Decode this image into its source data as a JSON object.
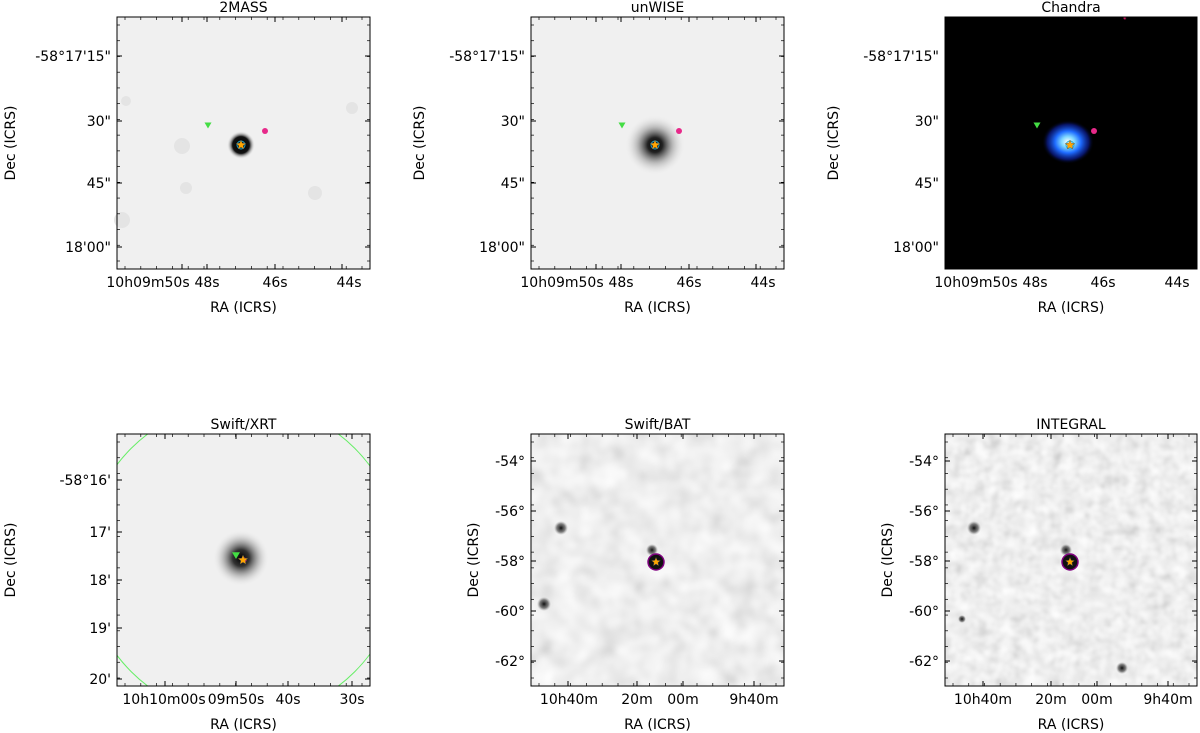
{
  "chart_data": [
    {
      "type": "image",
      "title": "2MASS",
      "xlabel": "RA (ICRS)",
      "ylabel": "Dec (ICRS)",
      "x_ticks": [
        "10h09m50s",
        "48s",
        "46s",
        "44s"
      ],
      "y_ticks": [
        "-58°17'15\"",
        "30\"",
        "45\"",
        "18'00\""
      ],
      "colormap": "gray_r",
      "source_spread": "compact"
    },
    {
      "type": "image",
      "title": "unWISE",
      "xlabel": "RA (ICRS)",
      "ylabel": "Dec (ICRS)",
      "x_ticks": [
        "10h09m50s",
        "48s",
        "46s",
        "44s"
      ],
      "y_ticks": [
        "-58°17'15\"",
        "30\"",
        "45\"",
        "18'00\""
      ],
      "colormap": "gray_r",
      "source_spread": "extended"
    },
    {
      "type": "image",
      "title": "Chandra",
      "xlabel": "RA (ICRS)",
      "ylabel": "Dec (ICRS)",
      "x_ticks": [
        "10h09m50s",
        "48s",
        "46s",
        "44s"
      ],
      "y_ticks": [
        "-58°17'15\"",
        "30\"",
        "45\"",
        "18'00\""
      ],
      "colormap": "blue-black",
      "background": "#000000"
    },
    {
      "type": "image",
      "title": "Swift/XRT",
      "xlabel": "RA (ICRS)",
      "ylabel": "Dec (ICRS)",
      "x_ticks": [
        "10h10m00s",
        "09m50s",
        "40s",
        "30s"
      ],
      "y_ticks": [
        "-58°16'",
        "17'",
        "18'",
        "19'",
        "20'"
      ],
      "colormap": "gray_r",
      "field_of_view_circle": true
    },
    {
      "type": "image",
      "title": "Swift/BAT",
      "xlabel": "RA (ICRS)",
      "ylabel": "Dec (ICRS)",
      "x_ticks": [
        "10h40m",
        "20m",
        "00m",
        "9h40m"
      ],
      "y_ticks": [
        "-54°",
        "-56°",
        "-58°",
        "-60°",
        "-62°"
      ],
      "colormap": "gray_r",
      "texture": "noisy"
    },
    {
      "type": "image",
      "title": "INTEGRAL",
      "xlabel": "RA (ICRS)",
      "ylabel": "Dec (ICRS)",
      "x_ticks": [
        "10h40m",
        "20m",
        "00m",
        "9h40m"
      ],
      "y_ticks": [
        "-54°",
        "-56°",
        "-58°",
        "-60°",
        "-62°"
      ],
      "colormap": "gray_r",
      "texture": "noisy"
    }
  ],
  "marker_colors": {
    "star": "#ffa500",
    "triangle": "#44dd44",
    "dot": "#e7298a",
    "circle": "#22aacc",
    "ring": "#800080",
    "fov": "#66ee66"
  }
}
